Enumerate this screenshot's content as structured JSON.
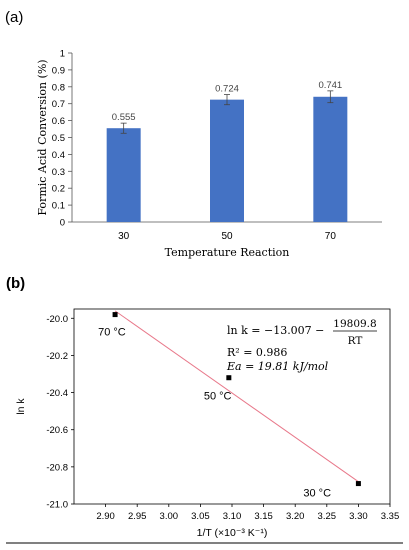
{
  "panel_a_label": "(a)",
  "panel_b_label": "(b)",
  "chart_data": [
    {
      "type": "bar",
      "panel": "(a)",
      "categories": [
        "30",
        "50",
        "70"
      ],
      "values": [
        0.555,
        0.724,
        0.741
      ],
      "errors": [
        0.03,
        0.03,
        0.035
      ],
      "data_labels": [
        "0.555",
        "0.724",
        "0.741"
      ],
      "xlabel": "Temperature Reaction",
      "ylabel": "Formic Acid Conversion (%)",
      "ylim": [
        0,
        1
      ],
      "yticks": [
        "0",
        "0.1",
        "0.2",
        "0.3",
        "0.4",
        "0.5",
        "0.6",
        "0.7",
        "0.8",
        "0.9",
        "1"
      ],
      "grid": false,
      "bar_color": "#4472c4"
    },
    {
      "type": "scatter",
      "panel": "(b)",
      "points": [
        {
          "x": 2.915,
          "y": -19.98,
          "label": "70 °C"
        },
        {
          "x": 3.095,
          "y": -20.32,
          "label": "50 °C"
        },
        {
          "x": 3.3,
          "y": -20.89,
          "label": "30 °C"
        }
      ],
      "fit_line": {
        "x": [
          2.915,
          3.3
        ],
        "y": [
          -19.96,
          -20.88
        ],
        "color": "#e8788a"
      },
      "xlabel": "1/T (×10⁻³ K⁻¹)",
      "ylabel": "ln k",
      "xlim": [
        2.85,
        3.35
      ],
      "ylim": [
        -21.0,
        -19.95
      ],
      "xticks": [
        "2.90",
        "2.95",
        "3.00",
        "3.05",
        "3.10",
        "3.15",
        "3.20",
        "3.25",
        "3.30",
        "3.35"
      ],
      "yticks": [
        "-20.0",
        "-20.2",
        "-20.4",
        "-20.6",
        "-20.8",
        "-21.0"
      ],
      "annotations": {
        "equation_lhs": "ln k = −13.007 −",
        "equation_num": "19809.8",
        "equation_den": "RT",
        "r2": "R² = 0.986",
        "ea": "Ea = 19.81 kJ/mol"
      },
      "marker_color": "#000000"
    }
  ]
}
